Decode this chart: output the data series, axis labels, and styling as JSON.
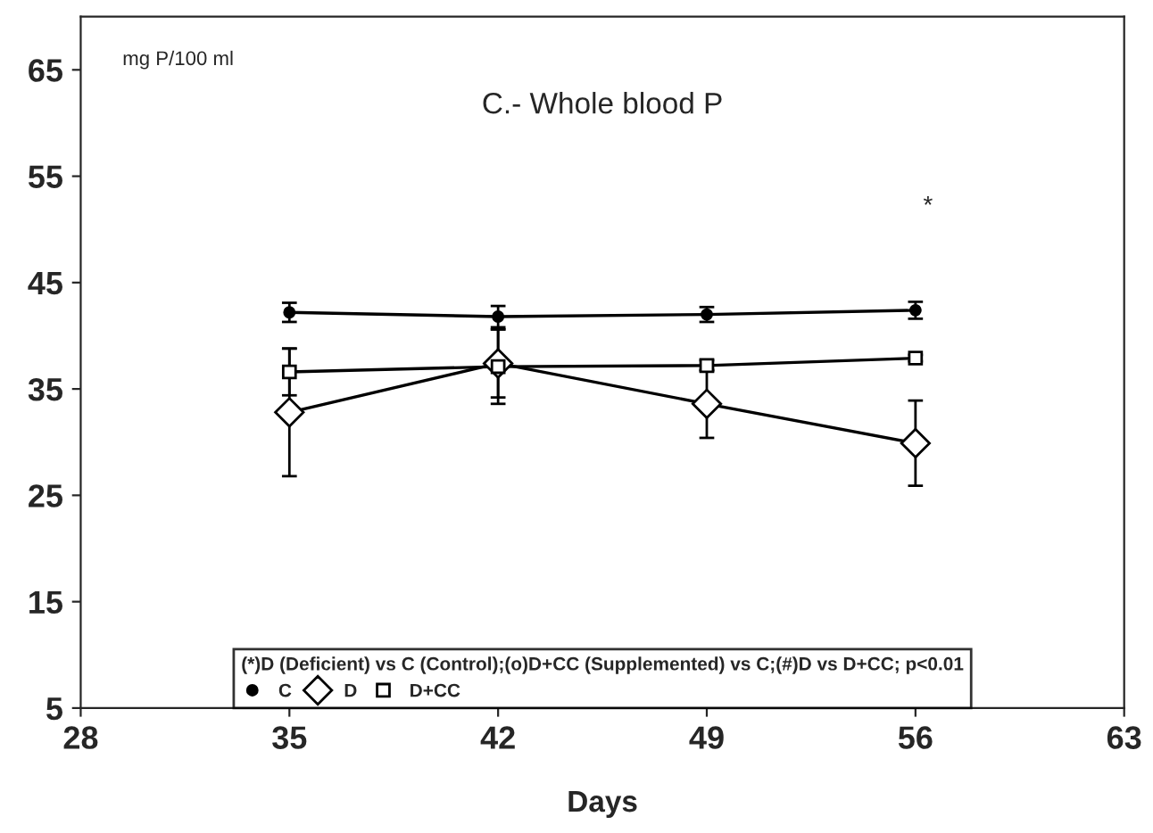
{
  "chart_data": {
    "type": "line",
    "title": "C.- Whole blood P",
    "xlabel": "Days",
    "ylabel": "mg P/100 ml",
    "legend_title": "(*)D (Deficient) vs C (Control);(o)D+CC (Supplemented) vs C;(#)D vs D+CC; p<0.01",
    "x": [
      35,
      42,
      49,
      56
    ],
    "series": [
      {
        "name": "C",
        "color": "#000000",
        "marker": "circle",
        "values": [
          42.2,
          41.8,
          42.0,
          42.4
        ],
        "errors": [
          0.9,
          1.0,
          0.7,
          0.8
        ]
      },
      {
        "name": "D",
        "color": "#000000",
        "marker": "diamond",
        "values": [
          32.8,
          37.4,
          33.6,
          29.9
        ],
        "errors": [
          6,
          3.2,
          3.2,
          4
        ]
      },
      {
        "name": "D+CC",
        "color": "#000000",
        "marker": "square",
        "values": [
          36.6,
          37.1,
          37.2,
          37.9
        ],
        "errors": [
          2.2,
          3.5,
          0.5,
          0.3
        ]
      }
    ],
    "annotations": [
      "*"
    ],
    "xlim": [
      28,
      63
    ],
    "xticks": [
      28,
      35,
      42,
      49,
      56,
      63
    ],
    "ylim": [
      5,
      70
    ],
    "yticks": [
      5,
      15,
      25,
      35,
      45,
      55,
      65
    ],
    "grid": false,
    "legend": "bottom",
    "line_style": "solid"
  }
}
